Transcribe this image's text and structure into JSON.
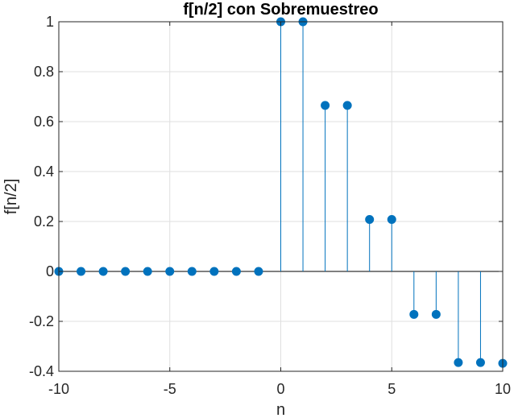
{
  "chart_data": {
    "type": "stem",
    "title": "f[n/2] con Sobremuestreo",
    "xlabel": "n",
    "ylabel": "f[n/2]",
    "xlim": [
      -10,
      10
    ],
    "ylim": [
      -0.4,
      1
    ],
    "xticks": [
      -10,
      -5,
      0,
      5,
      10
    ],
    "xtick_labels": [
      "-10",
      "-5",
      "0",
      "5",
      "10"
    ],
    "yticks": [
      -0.4,
      -0.2,
      0,
      0.2,
      0.4,
      0.6,
      0.8,
      1
    ],
    "ytick_labels": [
      "-0.4",
      "-0.2",
      "0",
      "0.2",
      "0.4",
      "0.6",
      "0.8",
      "1"
    ],
    "grid": true,
    "color": "#0072bd",
    "x": [
      -10,
      -9,
      -8,
      -7,
      -6,
      -5,
      -4,
      -3,
      -2,
      -1,
      0,
      1,
      2,
      3,
      4,
      5,
      6,
      7,
      8,
      9,
      10
    ],
    "y": [
      0,
      0,
      0,
      0,
      0,
      0,
      0,
      0,
      0,
      0,
      1,
      1,
      0.665,
      0.665,
      0.208,
      0.208,
      -0.172,
      -0.172,
      -0.365,
      -0.365,
      -0.368
    ]
  }
}
